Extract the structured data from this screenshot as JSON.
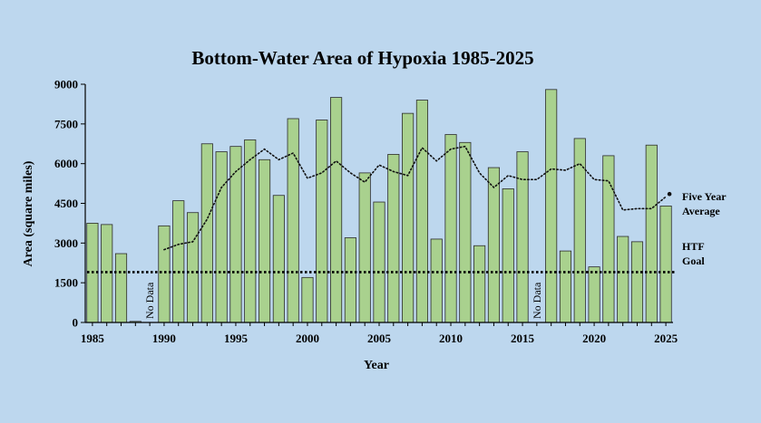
{
  "chart_data": {
    "type": "bar",
    "title": "Bottom-Water Area of Hypoxia 1985-2025",
    "xlabel": "Year",
    "ylabel": "Area (square miles)",
    "ylim": [
      0,
      9000
    ],
    "yticks": [
      0,
      1500,
      3000,
      4500,
      6000,
      7500,
      9000
    ],
    "xticks": [
      1985,
      1990,
      1995,
      2000,
      2005,
      2010,
      2015,
      2020,
      2025
    ],
    "years": [
      1985,
      1986,
      1987,
      1988,
      1989,
      1990,
      1991,
      1992,
      1993,
      1994,
      1995,
      1996,
      1997,
      1998,
      1999,
      2000,
      2001,
      2002,
      2003,
      2004,
      2005,
      2006,
      2007,
      2008,
      2009,
      2010,
      2011,
      2012,
      2013,
      2014,
      2015,
      2016,
      2017,
      2018,
      2019,
      2020,
      2021,
      2022,
      2023,
      2024,
      2025
    ],
    "values": [
      3750,
      3700,
      2600,
      40,
      null,
      3650,
      4600,
      4150,
      6750,
      6450,
      6650,
      6900,
      6150,
      4800,
      7700,
      1700,
      7650,
      8500,
      3200,
      5650,
      4550,
      6350,
      7900,
      8400,
      3150,
      7100,
      6800,
      2900,
      5850,
      5050,
      6450,
      null,
      8800,
      2700,
      6950,
      2100,
      6300,
      3250,
      3050,
      6700,
      4400
    ],
    "no_data_label": "No Data",
    "no_data_years": [
      1989,
      2016
    ],
    "five_year_average": {
      "name": "Five Year Average",
      "label_line1": "Five Year",
      "label_line2": "Average",
      "years": [
        1990,
        1991,
        1992,
        1993,
        1994,
        1995,
        1996,
        1997,
        1998,
        1999,
        2000,
        2001,
        2002,
        2003,
        2004,
        2005,
        2006,
        2007,
        2008,
        2009,
        2010,
        2011,
        2012,
        2013,
        2014,
        2015,
        2016,
        2017,
        2018,
        2019,
        2020,
        2021,
        2022,
        2023,
        2024,
        2025
      ],
      "values": [
        2750,
        2950,
        3050,
        3900,
        5100,
        5700,
        6150,
        6550,
        6150,
        6400,
        5450,
        5650,
        6100,
        5650,
        5300,
        5950,
        5700,
        5550,
        6600,
        6100,
        6550,
        6650,
        5650,
        5100,
        5550,
        5400,
        5400,
        5800,
        5750,
        6000,
        5400,
        5350,
        4250,
        4300,
        4300,
        4750
      ]
    },
    "htf_goal": {
      "value": 1900,
      "label_line1": "HTF",
      "label_line2": "Goal"
    },
    "colors": {
      "background": "#bdd7ee",
      "bar_fill": "#a9d18e",
      "bar_stroke": "#2b2b2b",
      "text": "#000000"
    }
  }
}
